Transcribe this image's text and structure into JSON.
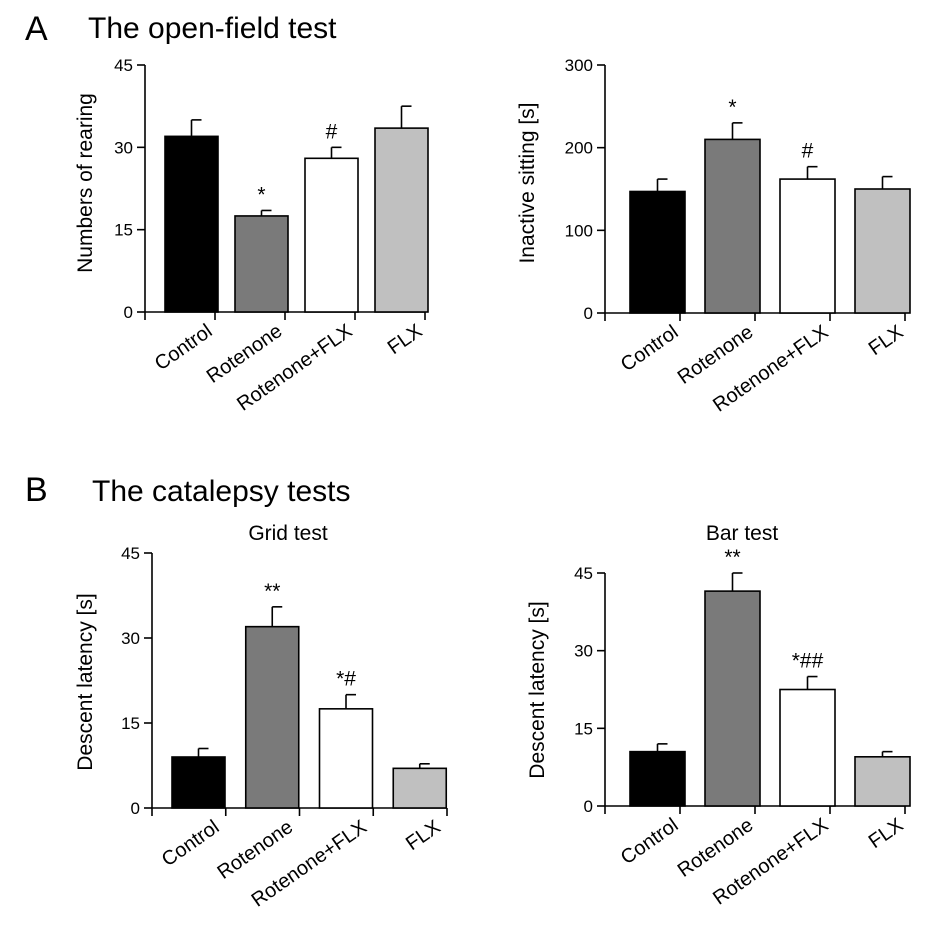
{
  "sections": [
    {
      "letter": "A",
      "title": "The open-field test"
    },
    {
      "letter": "B",
      "title": "The catalepsy tests"
    }
  ],
  "colors": {
    "Control": "#000000",
    "Rotenone": "#7a7a7a",
    "Rotenone+FLX": "#ffffff",
    "FLX": "#c0c0c0",
    "stroke": "#000000"
  },
  "chart_data": [
    {
      "type": "bar",
      "title": "",
      "xlabel": "",
      "ylabel": "Numbers of rearing",
      "ylim": [
        0,
        45
      ],
      "yticks": [
        "0",
        "15",
        "30",
        "45"
      ],
      "categories": [
        "Control",
        "Rotenone",
        "Rotenone+FLX",
        "FLX"
      ],
      "values": [
        32,
        17.5,
        28,
        33.5
      ],
      "errors": [
        3,
        1,
        2,
        4
      ],
      "annotations": [
        "",
        "*",
        "#",
        ""
      ]
    },
    {
      "type": "bar",
      "title": "",
      "xlabel": "",
      "ylabel": "Inactive sitting [s]",
      "ylim": [
        0,
        300
      ],
      "yticks": [
        "0",
        "100",
        "200",
        "300"
      ],
      "categories": [
        "Control",
        "Rotenone",
        "Rotenone+FLX",
        "FLX"
      ],
      "values": [
        147,
        210,
        162,
        150
      ],
      "errors": [
        15,
        20,
        15,
        15
      ],
      "annotations": [
        "",
        "*",
        "#",
        ""
      ]
    },
    {
      "type": "bar",
      "title": "Grid test",
      "xlabel": "",
      "ylabel": "Descent latency [s]",
      "ylim": [
        0,
        45
      ],
      "yticks": [
        "0",
        "15",
        "30",
        "45"
      ],
      "categories": [
        "Control",
        "Rotenone",
        "Rotenone+FLX",
        "FLX"
      ],
      "values": [
        9,
        32,
        17.5,
        7
      ],
      "errors": [
        1.5,
        3.5,
        2.5,
        0.8
      ],
      "annotations": [
        "",
        "**",
        "*#",
        ""
      ]
    },
    {
      "type": "bar",
      "title": "Bar test",
      "xlabel": "",
      "ylabel": "Descent latency [s]",
      "ylim": [
        0,
        45
      ],
      "yticks": [
        "0",
        "15",
        "30",
        "45"
      ],
      "categories": [
        "Control",
        "Rotenone",
        "Rotenone+FLX",
        "FLX"
      ],
      "values": [
        10.5,
        41.5,
        22.5,
        9.5
      ],
      "errors": [
        1.5,
        3.5,
        2.5,
        1
      ],
      "annotations": [
        "",
        "**",
        "*##",
        ""
      ]
    }
  ]
}
